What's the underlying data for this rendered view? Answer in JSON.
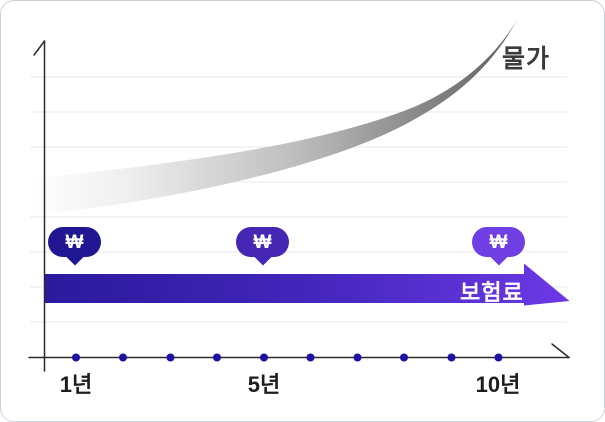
{
  "labels": {
    "curve": "물가",
    "bar": "보험료",
    "won_symbol": "₩"
  },
  "x_axis": {
    "ticks": [
      {
        "label": "1년"
      },
      {
        "label": "5년"
      },
      {
        "label": "10년"
      }
    ],
    "dot_positions": [
      75,
      122,
      169.5,
      216,
      263,
      309.5,
      356.5,
      403,
      450.5,
      497.5
    ],
    "dot_y": 356.5,
    "dot_radius": 4
  },
  "colors": {
    "card_border": "#ccd3dc",
    "background": "#ffffff",
    "gridline": "#e9e9e9",
    "axis": "#2b2b2b",
    "curve_gradient_start": "#ffffff",
    "curve_gradient_light": "#efefef",
    "curve_gradient_mid": "#bdbdbd",
    "curve_gradient_end": "#5e5e5e",
    "bar_gradient_start": "#2a1a9c",
    "bar_gradient_mid": "#4326bb",
    "bar_gradient_end": "#6c39e6",
    "bubble_1": "#211792",
    "bubble_2": "#4627b4",
    "bubble_3": "#6f3fe3",
    "dot": "#1b12a5",
    "curve_label_text": "#3b3b3b",
    "tick_label_text": "#1d1d1d",
    "bar_label_text": "#ffffff"
  },
  "chart_data": {
    "type": "area",
    "title": "",
    "description": "Conceptual insurance infographic: 물가 (prices) rises exponentially over the years while 보험료 (insurance premium) stays flat as a constant arrow; ₩ markers sit above years 1, 5 and 10.",
    "x": {
      "tick_labels": [
        "1년",
        "5년",
        "10년"
      ],
      "tick_years": [
        1,
        5,
        10
      ],
      "timeline_dot_years": [
        1,
        2,
        3,
        4,
        5,
        6,
        7,
        8,
        9,
        10
      ]
    },
    "y": {
      "label": "",
      "gridline_count": 8,
      "grid": true
    },
    "series": [
      {
        "name": "물가",
        "type": "gradient-band-curve",
        "trend": "exponential-increase",
        "relative_values_by_year": [
          1.0,
          1.05,
          1.12,
          1.22,
          1.35,
          1.52,
          1.75,
          2.1,
          2.6,
          3.4
        ]
      },
      {
        "name": "보험료",
        "type": "flat-arrow",
        "trend": "constant",
        "relative_values_by_year": [
          1,
          1,
          1,
          1,
          1,
          1,
          1,
          1,
          1,
          1
        ],
        "won_markers_at_years": [
          1,
          5,
          10
        ]
      }
    ],
    "legend_position": "none"
  }
}
